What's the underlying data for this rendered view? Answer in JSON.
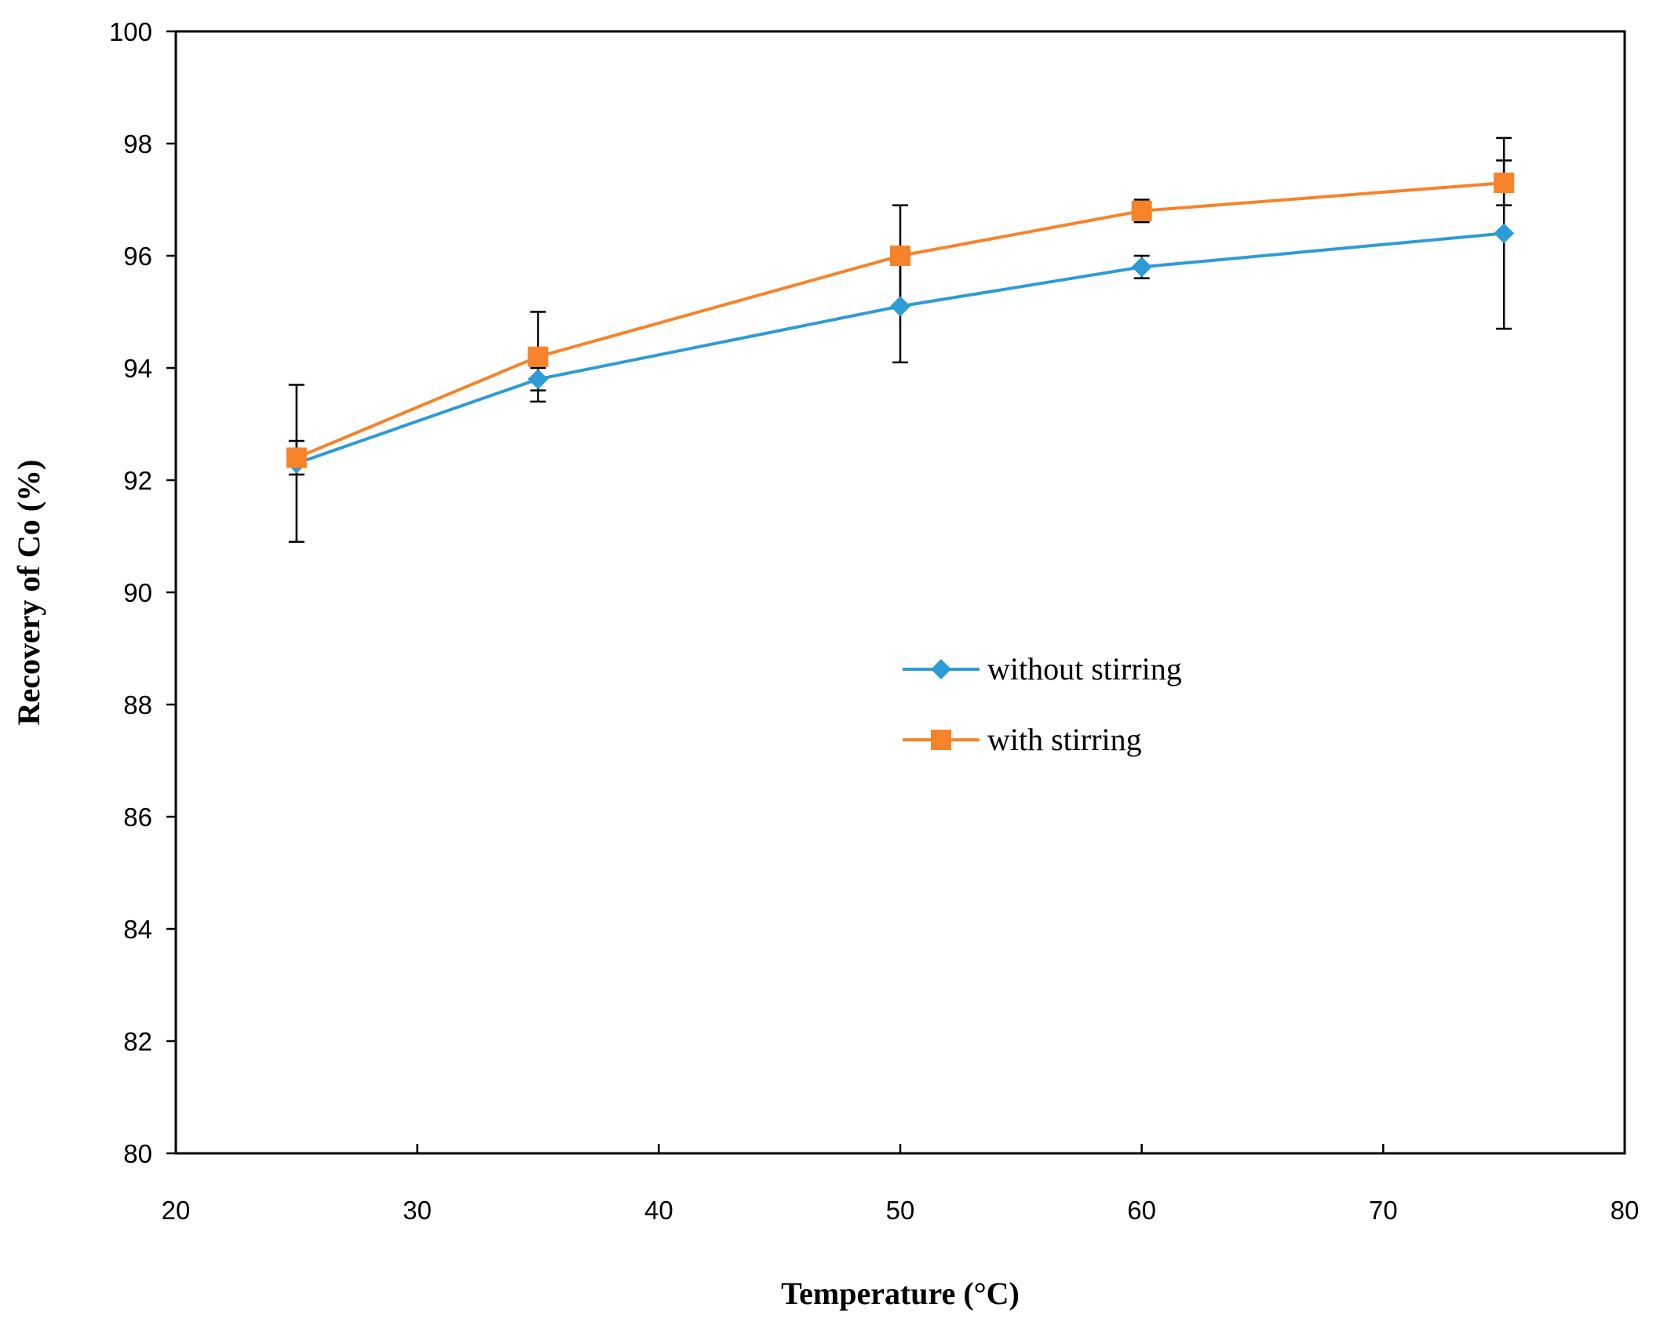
{
  "chart_data": {
    "type": "line",
    "title": "",
    "xlabel": "Temperature (°C)",
    "ylabel": "Recovery of Co (%)",
    "xlim": [
      20,
      80
    ],
    "ylim": [
      80,
      100
    ],
    "xticks": [
      20,
      30,
      40,
      50,
      60,
      70,
      80
    ],
    "yticks": [
      80,
      82,
      84,
      86,
      88,
      90,
      92,
      94,
      96,
      98,
      100
    ],
    "grid": false,
    "legend_position": "center",
    "x": [
      25,
      35,
      50,
      60,
      75
    ],
    "series": [
      {
        "name": "without stirring",
        "color": "#2E9BD6",
        "marker": "diamond",
        "values": [
          92.3,
          93.8,
          95.1,
          95.8,
          96.4
        ],
        "errors": [
          1.4,
          0.2,
          1.0,
          0.2,
          1.7
        ]
      },
      {
        "name": "with stirring",
        "color": "#F6832A",
        "marker": "square",
        "values": [
          92.4,
          94.2,
          96.0,
          96.8,
          97.3
        ],
        "errors": [
          0.3,
          0.8,
          0.9,
          0.2,
          0.4
        ]
      }
    ]
  }
}
